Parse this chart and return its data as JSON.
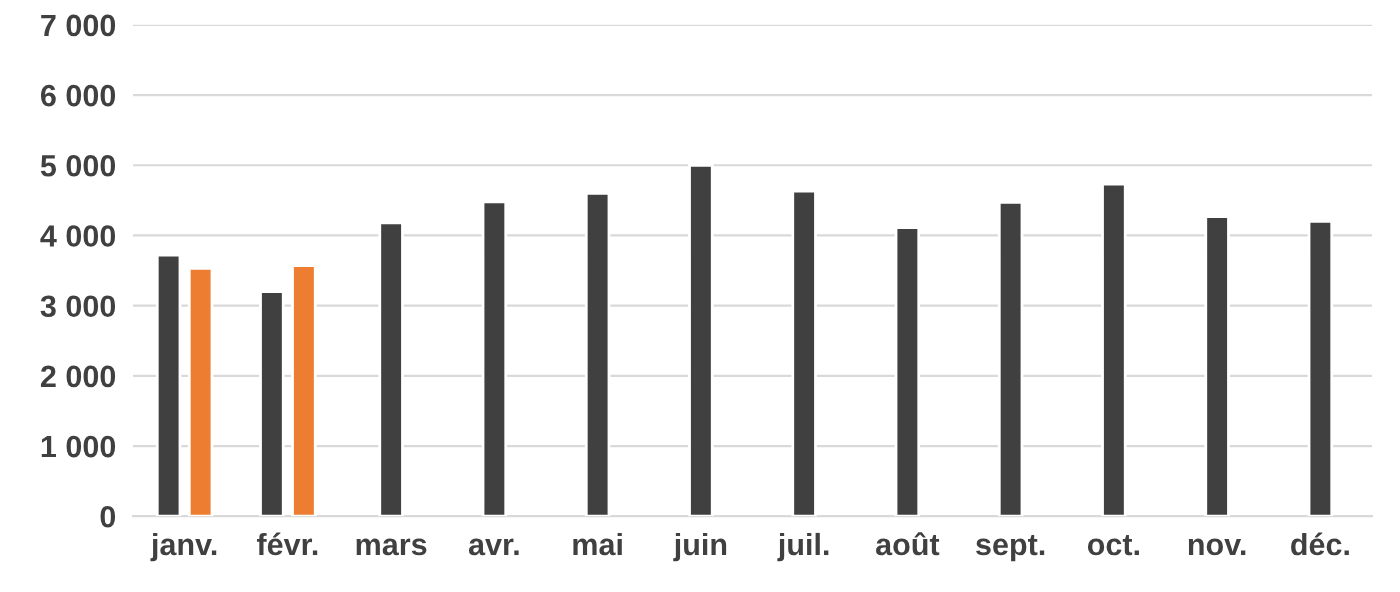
{
  "chart_data": {
    "type": "bar",
    "categories": [
      "janv.",
      "févr.",
      "mars",
      "avr.",
      "mai",
      "juin",
      "juil.",
      "août",
      "sept.",
      "oct.",
      "nov.",
      "déc."
    ],
    "series": [
      {
        "color": "#404040",
        "values": [
          3720,
          3200,
          4180,
          4480,
          4600,
          5000,
          4630,
          4110,
          4470,
          4730,
          4270,
          4200
        ]
      },
      {
        "color": "#ed7d31",
        "values": [
          3530,
          3570,
          null,
          null,
          null,
          null,
          null,
          null,
          null,
          null,
          null,
          null
        ]
      }
    ],
    "ylim": [
      0,
      7000
    ],
    "yticks": [
      0,
      {
        "value": 1000,
        "label": "1 000"
      },
      {
        "value": 2000,
        "label": "2 000"
      },
      {
        "value": 3000,
        "label": "3 000"
      },
      {
        "value": 4000,
        "label": "4 000"
      },
      {
        "value": 5000,
        "label": "5 000"
      },
      {
        "value": 6000,
        "label": "6 000"
      },
      {
        "value": 7000,
        "label": "7 000"
      }
    ],
    "grid": "y"
  }
}
